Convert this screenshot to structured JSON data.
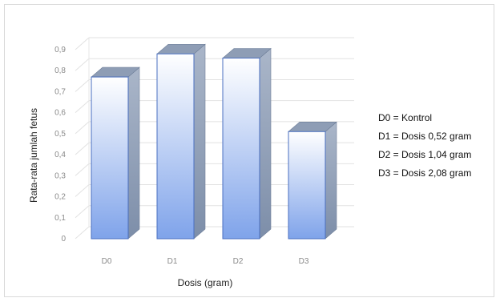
{
  "chart_data": {
    "type": "bar",
    "categories": [
      "D0",
      "D1",
      "D2",
      "D3"
    ],
    "values": [
      0.77,
      0.88,
      0.86,
      0.51
    ],
    "title": "",
    "xlabel": "Dosis (gram)",
    "ylabel": "Rata-rata jumlah fetus",
    "ylim": [
      0,
      0.9
    ],
    "yticks": [
      "0",
      "0,1",
      "0,2",
      "0,3",
      "0,4",
      "0,5",
      "0,6",
      "0,7",
      "0,8",
      "0,9"
    ],
    "grid": true,
    "legend_position": "right",
    "legend": [
      "D0 = Kontrol",
      "D1 = Dosis 0,52 gram",
      "D2 = Dosis 1,04 gram",
      "D3 = Dosis 2,08 gram"
    ],
    "bar_color_top": "#ffffff",
    "bar_color_bottom": "#7fa3ea",
    "bar_side_color": "#8a9bb8",
    "bar_top_color": "#8e9db5"
  }
}
